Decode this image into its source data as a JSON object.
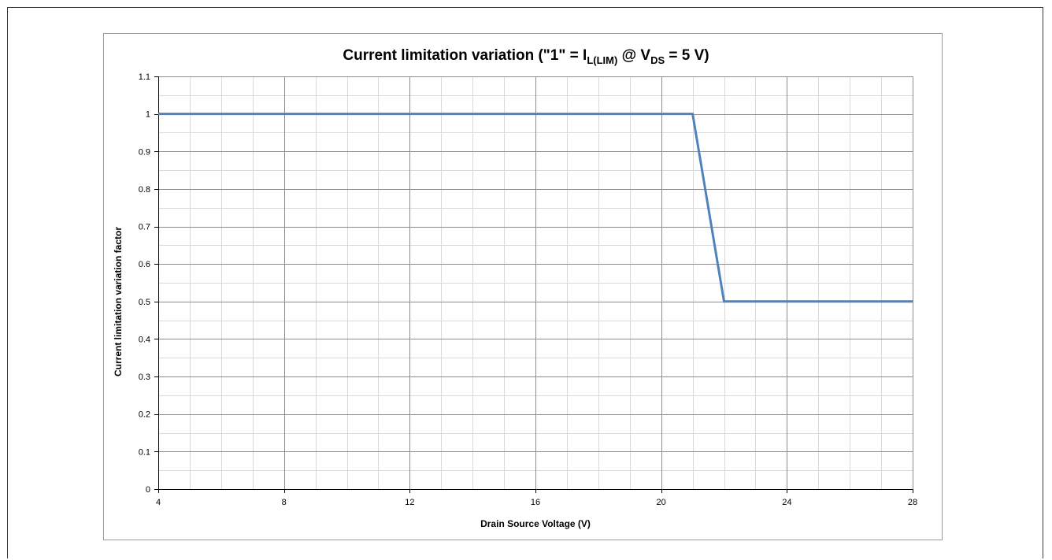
{
  "chart_data": {
    "type": "line",
    "title": {
      "prefix": "Current limitation variation (\"1\" = I",
      "sub1": "L(LIM)",
      "middle": " @ V",
      "sub2": "DS",
      "suffix": " = 5 V)"
    },
    "xlabel": "Drain Source Voltage (V)",
    "ylabel": "Current limitation variation factor",
    "xlim": [
      4,
      28
    ],
    "ylim": [
      0,
      1.1
    ],
    "x_ticks": [
      4,
      8,
      12,
      16,
      20,
      24,
      28
    ],
    "x_tick_labels": [
      "4",
      "8",
      "12",
      "16",
      "20",
      "24",
      "28"
    ],
    "x_minor_step": 1,
    "y_ticks": [
      0,
      0.1,
      0.2,
      0.3,
      0.4,
      0.5,
      0.6,
      0.7,
      0.8,
      0.9,
      1,
      1.1
    ],
    "y_tick_labels": [
      "0",
      "0.1",
      "0.2",
      "0.3",
      "0.4",
      "0.5",
      "0.6",
      "0.7",
      "0.8",
      "0.9",
      "1",
      "1.1"
    ],
    "y_minor_step": 0.05,
    "grid": true,
    "legend": "none",
    "series": [
      {
        "color": "#4f81bd",
        "x": [
          4,
          21,
          22,
          28
        ],
        "y": [
          1,
          1,
          0.5,
          0.5
        ]
      }
    ]
  }
}
